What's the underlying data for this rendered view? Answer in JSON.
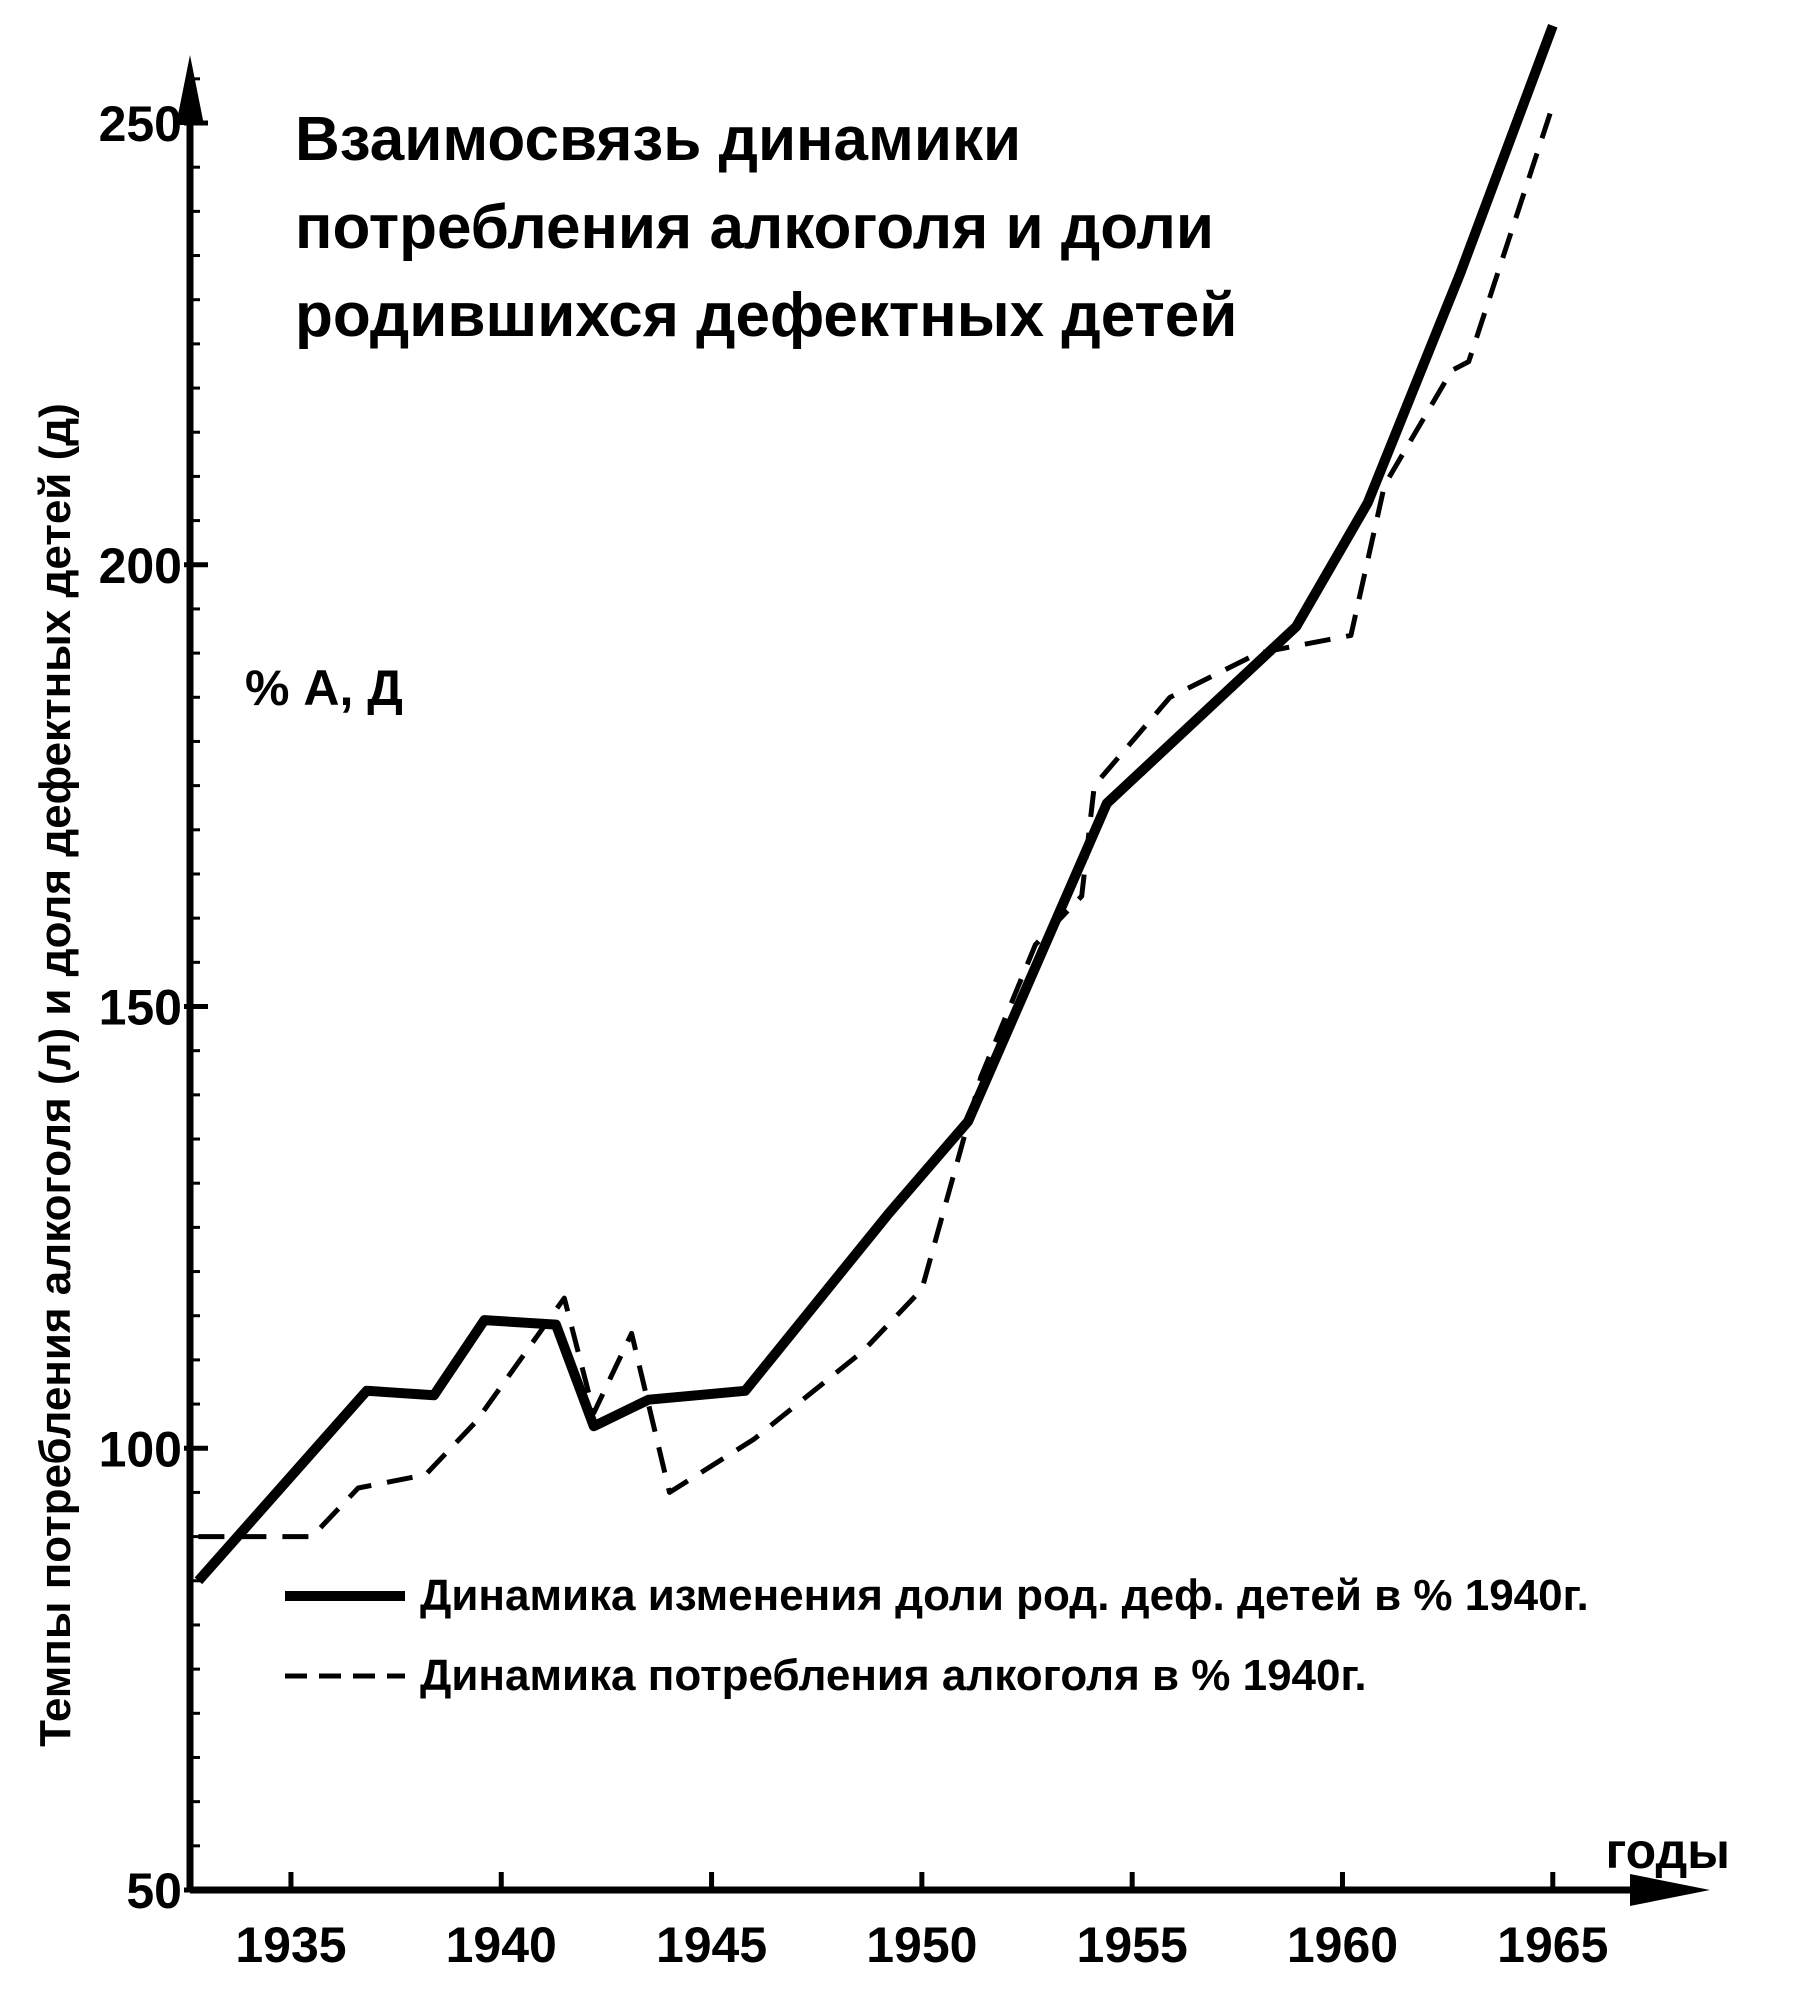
{
  "chart_data": {
    "type": "line",
    "title_lines": [
      "Взаимосвязь динамики",
      "потребления алкоголя и доли",
      "родившихся дефектных детей"
    ],
    "xlabel": "годы",
    "ylabel": "Темпы потребления алкоголя (л) и доля дефектных детей (д)",
    "y_unit": "% А, Д",
    "xlim": [
      1932.6,
      1968.5
    ],
    "ylim": [
      50,
      256
    ],
    "x_ticks": [
      1935,
      1940,
      1945,
      1950,
      1955,
      1960,
      1965
    ],
    "y_ticks": [
      50,
      100,
      150,
      200,
      250
    ],
    "grid": false,
    "legend_position": "bottom-right",
    "series": [
      {
        "name": "Динамика изменения доли род. деф. детей в % 1940г.",
        "style": "solid",
        "points": [
          [
            1932.8,
            85
          ],
          [
            1936.8,
            106.5
          ],
          [
            1938.4,
            106
          ],
          [
            1939.6,
            114.5
          ],
          [
            1941.3,
            114
          ],
          [
            1942.2,
            102.5
          ],
          [
            1943.5,
            105.5
          ],
          [
            1945.8,
            106.5
          ],
          [
            1949.2,
            126.5
          ],
          [
            1951.1,
            137
          ],
          [
            1954.4,
            173
          ],
          [
            1958.9,
            193
          ],
          [
            1960.6,
            207
          ],
          [
            1962.8,
            233
          ],
          [
            1965.0,
            261
          ]
        ]
      },
      {
        "name": "Динамика потребления алкоголя в % 1940г.",
        "style": "dashed",
        "points": [
          [
            1932.8,
            90
          ],
          [
            1935.5,
            90
          ],
          [
            1936.6,
            95.5
          ],
          [
            1938.2,
            97
          ],
          [
            1939.4,
            103
          ],
          [
            1941.5,
            117
          ],
          [
            1942.2,
            104
          ],
          [
            1943.1,
            113
          ],
          [
            1944.0,
            95
          ],
          [
            1946.0,
            101
          ],
          [
            1948.6,
            111
          ],
          [
            1950.0,
            118
          ],
          [
            1951.4,
            142
          ],
          [
            1952.7,
            157
          ],
          [
            1953.8,
            162.5
          ],
          [
            1954.1,
            175
          ],
          [
            1955.9,
            185
          ],
          [
            1958.0,
            190
          ],
          [
            1960.2,
            192
          ],
          [
            1961.0,
            209
          ],
          [
            1962.6,
            222
          ],
          [
            1963.0,
            223
          ],
          [
            1965.0,
            252
          ]
        ]
      }
    ]
  }
}
